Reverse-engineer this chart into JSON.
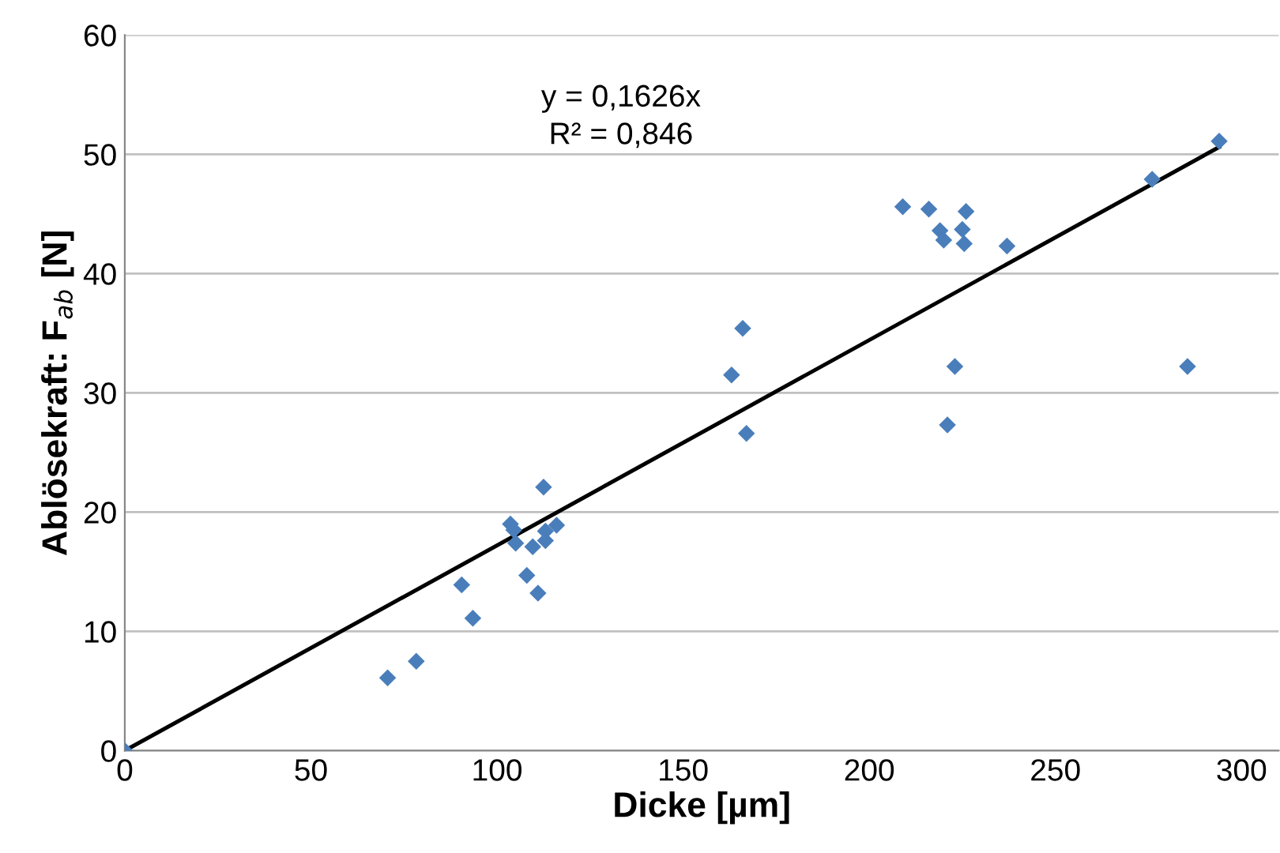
{
  "chart_data": {
    "type": "scatter",
    "xlabel": "Dicke [µm]",
    "ylabel": "Ablösekraft: F$_{ab}$ [N]",
    "annotations": [
      "y = 0,1626x\nR² = 0,846"
    ],
    "xlim": [
      0,
      310
    ],
    "xticks": [
      0,
      50,
      100,
      150,
      200,
      250,
      300
    ],
    "ylim": [
      0,
      60
    ],
    "yticks": [
      0,
      10,
      20,
      30,
      40,
      50,
      60
    ],
    "grid": "y",
    "marker": "diamond",
    "series": [
      {
        "color": "#4a7ebb",
        "x": [
          0,
          70.6,
          78.3,
          90.5,
          93.5,
          103.6,
          104.5,
          105,
          112.5,
          109.6,
          108,
          111,
          113,
          113,
          116,
          163,
          166,
          167,
          209,
          216,
          219,
          220,
          225,
          225.5,
          226,
          223,
          221,
          237,
          276,
          294,
          285.5
        ],
        "values": [
          0,
          6.1,
          7.5,
          13.9,
          11.1,
          19.0,
          18.5,
          17.4,
          22.1,
          17.1,
          14.7,
          13.2,
          17.6,
          18.4,
          18.9,
          31.5,
          35.4,
          26.6,
          45.6,
          45.4,
          43.6,
          42.8,
          43.7,
          42.5,
          45.2,
          32.2,
          27.3,
          42.3,
          47.9,
          51.1,
          32.2
        ]
      },
      {
        "type": "line",
        "color": "#000000",
        "x": [
          0,
          294
        ],
        "values": [
          0,
          50.6
        ],
        "marker": "none"
      }
    ]
  }
}
